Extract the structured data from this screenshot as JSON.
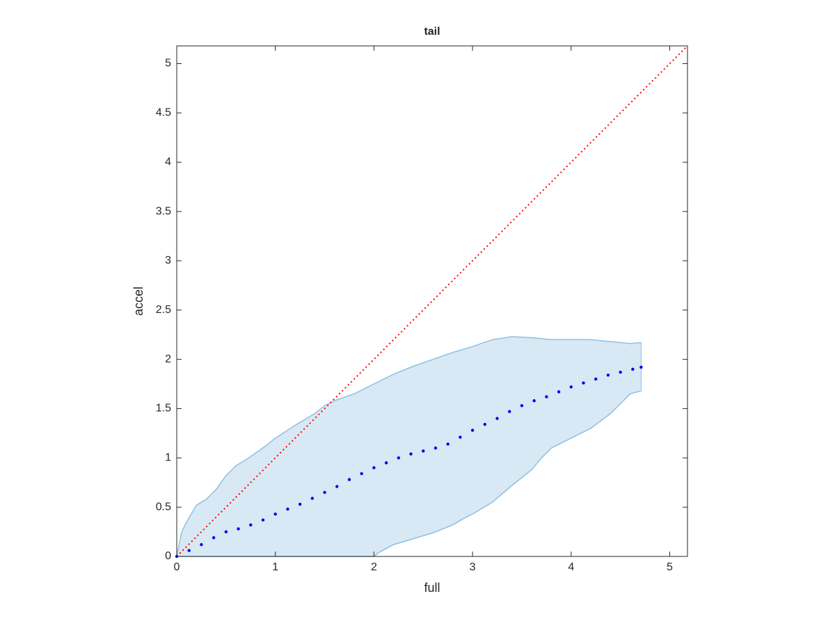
{
  "chart_data": {
    "type": "band-scatter",
    "title": "tail",
    "xlabel": "full",
    "ylabel": "accel",
    "xlim": [
      0,
      5.18
    ],
    "ylim": [
      0,
      5.18
    ],
    "xticks": [
      0,
      1,
      2,
      3,
      4,
      5
    ],
    "yticks": [
      0,
      0.5,
      1,
      1.5,
      2,
      2.5,
      3,
      3.5,
      4,
      4.5,
      5
    ],
    "band": {
      "fill": "#d8e8f4",
      "edge": "#8ec0e0",
      "upper": {
        "x": [
          0,
          0.05,
          0.1,
          0.2,
          0.3,
          0.4,
          0.5,
          0.6,
          0.7,
          0.8,
          0.9,
          1.0,
          1.2,
          1.4,
          1.5,
          1.6,
          1.8,
          2.0,
          2.2,
          2.4,
          2.6,
          2.8,
          3.0,
          3.2,
          3.4,
          3.6,
          3.8,
          4.0,
          4.2,
          4.4,
          4.6,
          4.71
        ],
        "values": [
          0,
          0.25,
          0.35,
          0.52,
          0.58,
          0.68,
          0.82,
          0.92,
          0.98,
          1.05,
          1.12,
          1.2,
          1.33,
          1.45,
          1.53,
          1.58,
          1.65,
          1.75,
          1.85,
          1.93,
          2.0,
          2.07,
          2.13,
          2.2,
          2.23,
          2.22,
          2.2,
          2.2,
          2.2,
          2.18,
          2.16,
          2.17
        ]
      },
      "lower": {
        "x": [
          0,
          1.0,
          2.0,
          2.05,
          2.2,
          2.4,
          2.6,
          2.8,
          2.9,
          3.0,
          3.2,
          3.4,
          3.6,
          3.7,
          3.8,
          4.0,
          4.2,
          4.4,
          4.5,
          4.6,
          4.71
        ],
        "values": [
          0,
          0,
          0,
          0.04,
          0.12,
          0.18,
          0.24,
          0.32,
          0.38,
          0.43,
          0.55,
          0.72,
          0.88,
          1.0,
          1.1,
          1.2,
          1.3,
          1.45,
          1.55,
          1.65,
          1.68
        ]
      }
    },
    "points": {
      "color": "#0000ee",
      "x": [
        0,
        0.125,
        0.25,
        0.375,
        0.5,
        0.625,
        0.75,
        0.875,
        1.0,
        1.125,
        1.25,
        1.375,
        1.5,
        1.625,
        1.75,
        1.875,
        2.0,
        2.125,
        2.25,
        2.375,
        2.5,
        2.625,
        2.75,
        2.875,
        3.0,
        3.125,
        3.25,
        3.375,
        3.5,
        3.625,
        3.75,
        3.875,
        4.0,
        4.125,
        4.25,
        4.375,
        4.5,
        4.625,
        4.71
      ],
      "values": [
        0,
        0.06,
        0.12,
        0.19,
        0.25,
        0.28,
        0.32,
        0.37,
        0.43,
        0.48,
        0.53,
        0.59,
        0.65,
        0.71,
        0.78,
        0.84,
        0.9,
        0.95,
        1.0,
        1.04,
        1.07,
        1.1,
        1.14,
        1.21,
        1.28,
        1.34,
        1.4,
        1.47,
        1.53,
        1.58,
        1.62,
        1.67,
        1.72,
        1.76,
        1.8,
        1.84,
        1.87,
        1.9,
        1.92
      ]
    },
    "diagonal": {
      "color": "#ff0000",
      "x": [
        0,
        5.18
      ],
      "values": [
        0,
        5.18
      ]
    }
  }
}
